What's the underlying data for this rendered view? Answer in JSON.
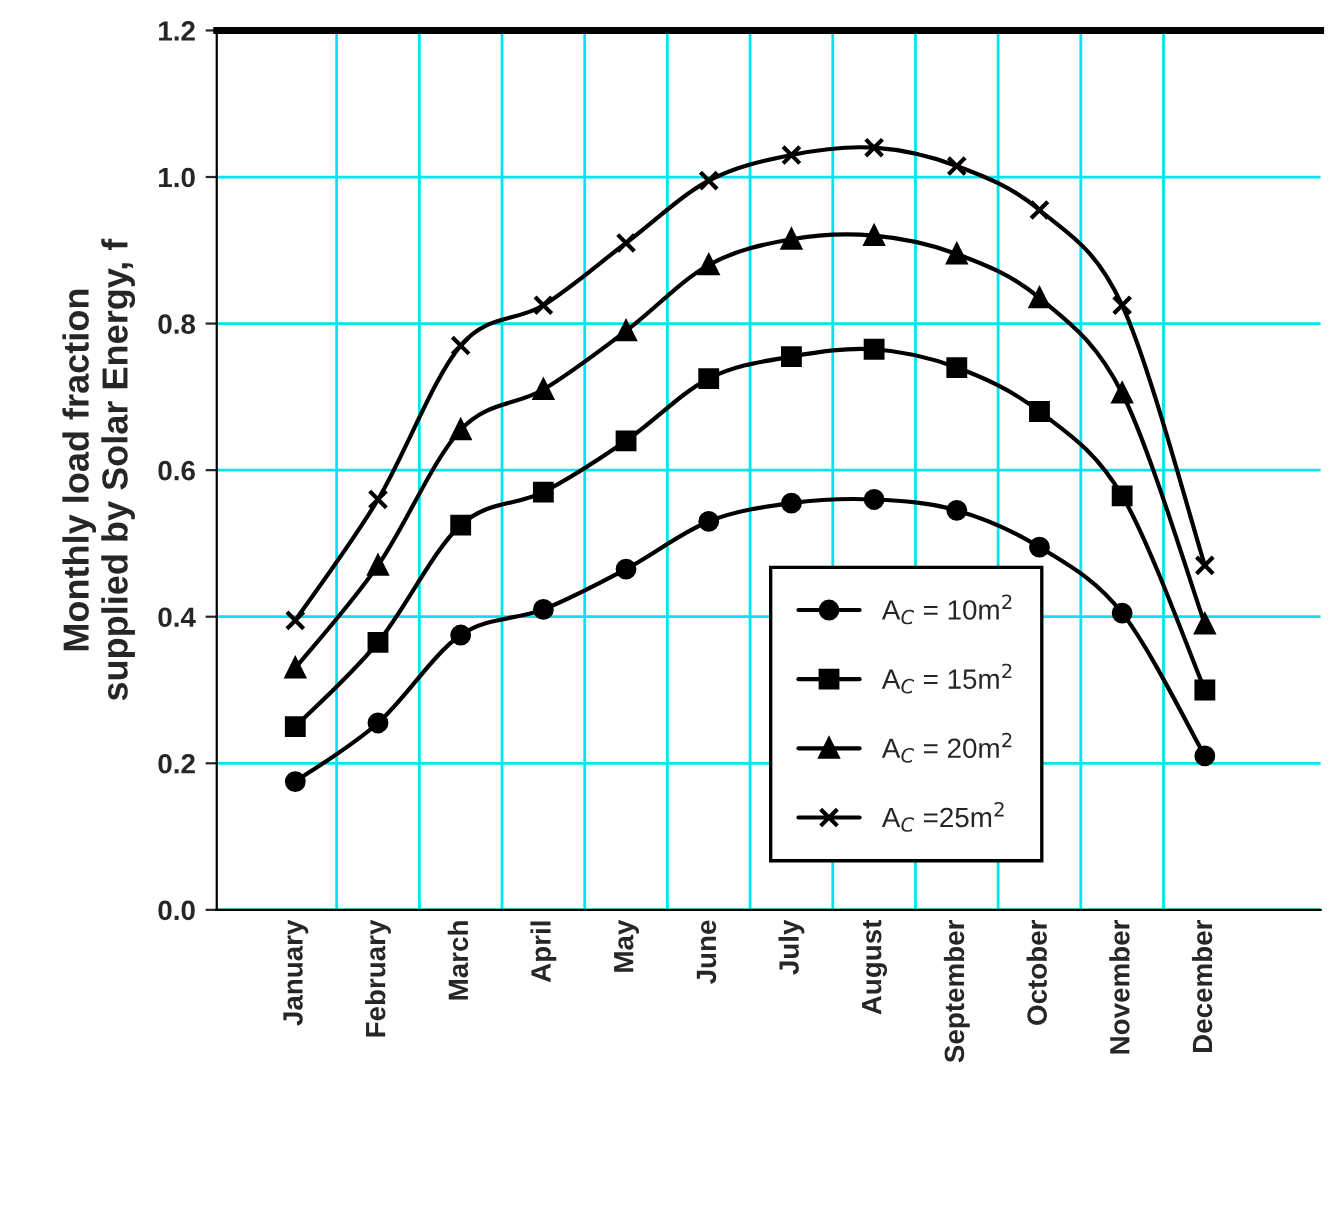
{
  "chart_data": {
    "type": "line",
    "ylabel": "Monthly load fraction\nsupplied by Solar Energy, f",
    "categories": [
      "January",
      "February",
      "March",
      "April",
      "May",
      "June",
      "July",
      "August",
      "September",
      "October",
      "November",
      "December"
    ],
    "ylim": [
      0,
      1.2
    ],
    "yticks": [
      "0.0",
      0.2,
      0.4,
      0.6,
      0.8,
      "1.0",
      1.2
    ],
    "grid": true,
    "legend": "bottom right",
    "line_style": "solid",
    "series": [
      {
        "name": "A$_{C}$ = 10m$^{2}$",
        "color": "#000000",
        "marker": "circle",
        "values": [
          0.175,
          0.255,
          0.375,
          0.41,
          0.465,
          0.53,
          0.555,
          0.56,
          0.545,
          0.495,
          0.405,
          0.21
        ]
      },
      {
        "name": "A$_{C}$ = 15m$^{2}$",
        "color": "#000000",
        "marker": "square",
        "values": [
          0.25,
          0.365,
          0.525,
          0.57,
          0.64,
          0.725,
          0.755,
          0.765,
          0.74,
          0.68,
          0.565,
          0.3
        ]
      },
      {
        "name": "A$_{C}$ = 20m$^{2}$",
        "color": "#000000",
        "marker": "triangle",
        "values": [
          0.33,
          0.47,
          0.655,
          0.71,
          0.79,
          0.88,
          0.915,
          0.92,
          0.895,
          0.835,
          0.705,
          0.39
        ]
      },
      {
        "name": "A$_{C}$ =25m$^{2}$",
        "color": "#000000",
        "marker": "cross",
        "values": [
          0.395,
          0.56,
          0.77,
          0.825,
          0.91,
          0.995,
          1.03,
          1.04,
          1.015,
          0.955,
          0.825,
          0.47
        ]
      }
    ]
  }
}
